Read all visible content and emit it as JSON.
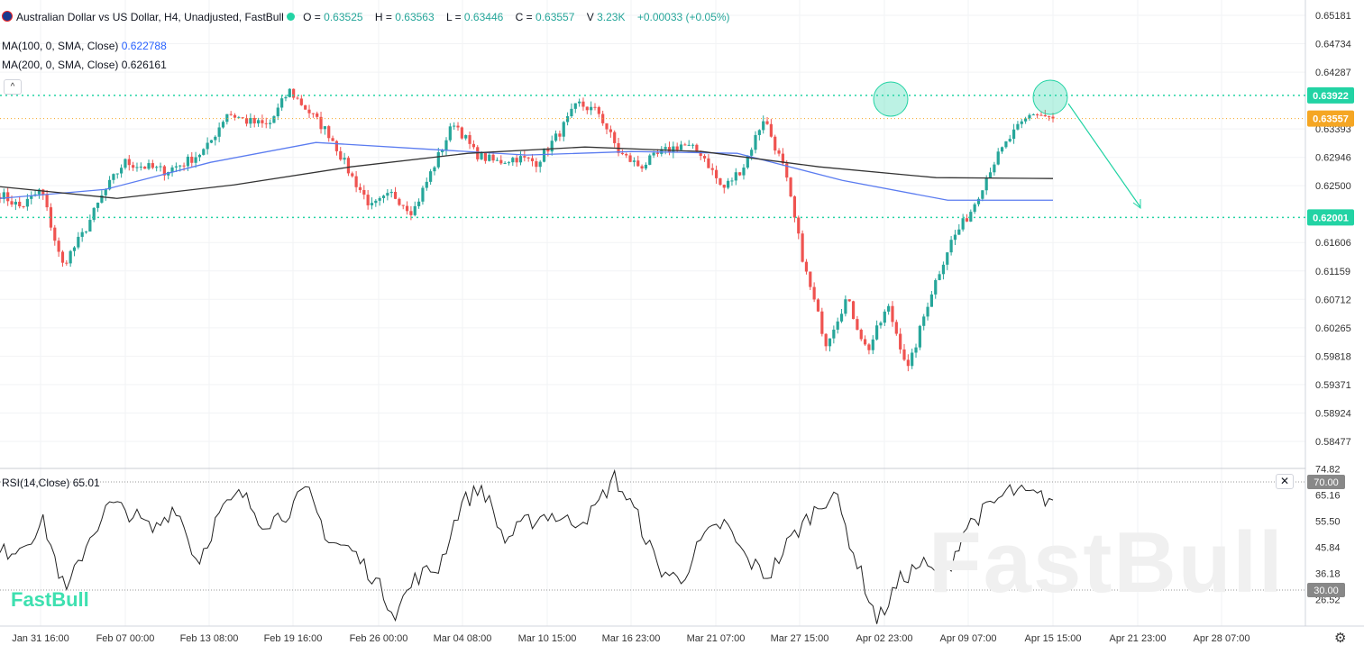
{
  "header": {
    "title": "Australian Dollar vs US Dollar, H4, Unadjusted, FastBull",
    "o_label": "O =",
    "o": "0.63525",
    "h_label": "H =",
    "h": "0.63563",
    "l_label": "L =",
    "l": "0.63446",
    "c_label": "C =",
    "c": "0.63557",
    "v_label": "V",
    "v": "3.23K",
    "change": "+0.00033 (+0.05%)"
  },
  "indicators": {
    "ma100_label": "MA(100, 0, SMA, Close)",
    "ma100_value": "0.622788",
    "ma200_label": "MA(200, 0, SMA, Close)",
    "ma200_value": "0.626161",
    "rsi_label": "RSI(14,Close)",
    "rsi_value": "65.01"
  },
  "buttons": {
    "collapse": "^",
    "close": "✕",
    "settings": "⚙"
  },
  "brand": {
    "logo": "FastBull",
    "watermark": "FastBull"
  },
  "colors": {
    "up": "#26a69a",
    "down": "#ef5350",
    "ma100": "#5b7cf0",
    "ma200": "#333333",
    "level": "#22d3a4",
    "last": "#f5a623"
  },
  "chart_data": {
    "type": "candlestick",
    "price_ticks": [
      "0.65181",
      "0.64734",
      "0.64287",
      "0.63393",
      "0.62946",
      "0.62500",
      "0.61606",
      "0.61159",
      "0.60712",
      "0.60265",
      "0.59818",
      "0.59371",
      "0.58924",
      "0.58477"
    ],
    "ylim": [
      0.58477,
      0.65181
    ],
    "x_ticks": [
      "Jan 31 16:00",
      "Feb 07 00:00",
      "Feb 13 08:00",
      "Feb 19 16:00",
      "Feb 26 00:00",
      "Mar 04 08:00",
      "Mar 10 15:00",
      "Mar 16 23:00",
      "Mar 21 07:00",
      "Mar 27 15:00",
      "Apr 02 23:00",
      "Apr 09 07:00",
      "Apr 15 15:00",
      "Apr 21 23:00",
      "Apr 28 07:00"
    ],
    "close_path": [
      0.6237,
      0.6216,
      0.6244,
      0.6124,
      0.6173,
      0.6237,
      0.6287,
      0.628,
      0.6273,
      0.6287,
      0.6308,
      0.6365,
      0.6351,
      0.6344,
      0.64,
      0.6365,
      0.6329,
      0.6266,
      0.6216,
      0.6237,
      0.6209,
      0.628,
      0.6351,
      0.6301,
      0.6287,
      0.6294,
      0.6287,
      0.6329,
      0.6379,
      0.6365,
      0.6301,
      0.628,
      0.6301,
      0.6315,
      0.6301,
      0.6244,
      0.628,
      0.6358,
      0.6273,
      0.6117,
      0.6003,
      0.6073,
      0.5989,
      0.606,
      0.596,
      0.6073,
      0.6159,
      0.6209,
      0.628,
      0.6329,
      0.6365,
      0.63557
    ],
    "ma100": [
      0.623,
      0.62442,
      0.62868,
      0.6318,
      0.63081,
      0.62982,
      0.63038,
      0.6301,
      0.62584,
      0.62272,
      0.62272
    ],
    "ma200": [
      0.62485,
      0.623,
      0.62513,
      0.62797,
      0.6301,
      0.63109,
      0.63038,
      0.62797,
      0.62627,
      0.62613
    ],
    "levels": [
      {
        "price": 0.63922,
        "label": "0.63922"
      },
      {
        "price": 0.62001,
        "label": "0.62001"
      }
    ],
    "last_price": {
      "price": 0.63557,
      "label": "0.63557"
    },
    "annotations": [
      "double-top circles",
      "down arrow toward 0.62001"
    ],
    "rsi": {
      "ticks": [
        "74.82",
        "65.16",
        "55.50",
        "45.84",
        "36.18",
        "26.52"
      ],
      "levels": [
        {
          "value": 70,
          "label": "70.00"
        },
        {
          "value": 30,
          "label": "30.00"
        }
      ],
      "path": [
        43.3,
        46.7,
        55,
        28.3,
        48.3,
        61.7,
        58.3,
        51.7,
        61.7,
        40,
        58.3,
        65.7,
        55,
        58.3,
        66.7,
        48.3,
        45,
        35,
        21.7,
        35,
        38.3,
        61.7,
        68.3,
        48.3,
        55,
        58.3,
        55,
        58.3,
        71.7,
        58.3,
        38.3,
        33.3,
        48.3,
        55,
        41.7,
        35,
        48.3,
        58.3,
        66.7,
        41.7,
        18.3,
        33.3,
        40,
        33.3,
        53.3,
        60,
        66.7,
        65,
        63.3
      ]
    }
  }
}
